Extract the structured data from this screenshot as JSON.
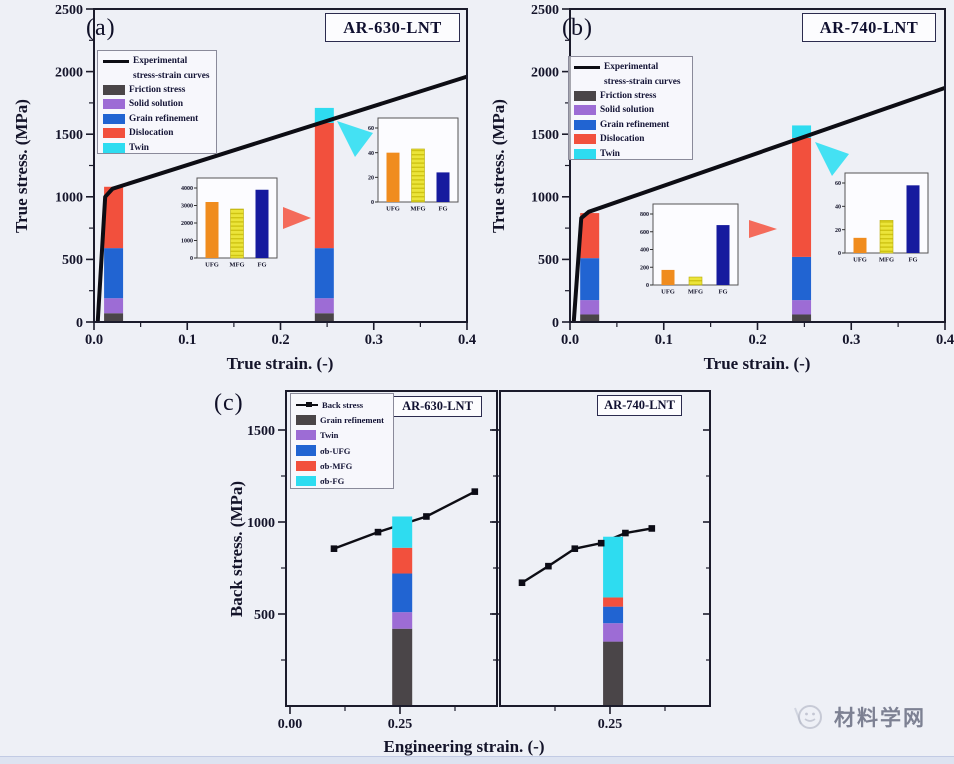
{
  "figure": {
    "panel_letters": {
      "a": "(a)",
      "b": "(b)",
      "c": "(c)"
    },
    "legend_ab": {
      "curve_line1": "Experimental",
      "curve_line2": "stress-strain curves",
      "items": [
        "Friction stress",
        "Solid solution",
        "Grain refinement",
        "Dislocation",
        "Twin"
      ]
    },
    "legend_c": {
      "line_item": "Back stress",
      "items": [
        "Grain refinement",
        "Twin",
        "σb-UFG",
        "σb-MFG",
        "σb-FG"
      ]
    },
    "watermark": "材料学网"
  },
  "colors": {
    "gray": "#4a4548",
    "purple": "#9d6cd5",
    "blue": "#2164d2",
    "red": "#f2503d",
    "cyan": "#2edcf0",
    "orange": "#f08c1e",
    "yellow": "#ebe43a",
    "navy": "#161a9e",
    "line": "#0d0d14",
    "arrow_red": "#f4604d",
    "arrow_cyan": "#35dff2"
  },
  "chart_data": [
    {
      "panel": "a",
      "type": "line+stacked-bar",
      "title": "AR-630-LNT",
      "xlabel": "True strain. (-)",
      "ylabel": "True stress. (MPa)",
      "xlim": [
        0,
        0.4
      ],
      "xticks": [
        0,
        0.1,
        0.2,
        0.3,
        0.4
      ],
      "ylim": [
        0,
        2500
      ],
      "yticks": [
        0,
        500,
        1000,
        1500,
        2000,
        2500
      ],
      "experimental_curve": [
        [
          0.004,
          0
        ],
        [
          0.012,
          1000
        ],
        [
          0.02,
          1065
        ],
        [
          0.4,
          1960
        ]
      ],
      "segment_names": [
        "Friction stress",
        "Solid solution",
        "Grain refinement",
        "Dislocation",
        "Twin"
      ],
      "bars": [
        {
          "x": 0.021,
          "segments": [
            70,
            120,
            400,
            490,
            0
          ]
        },
        {
          "x": 0.247,
          "segments": [
            70,
            120,
            400,
            1000,
            120
          ]
        }
      ],
      "insets": [
        {
          "pos": "center",
          "ylim": [
            0,
            4000
          ],
          "yticks": [
            0,
            1000,
            2000,
            3000,
            4000
          ],
          "categories": [
            "UFG",
            "MFG",
            "FG"
          ],
          "values": [
            3200,
            2800,
            3900
          ]
        },
        {
          "pos": "upper-right",
          "ylim": [
            0,
            60
          ],
          "yticks": [
            0,
            20,
            40,
            60
          ],
          "categories": [
            "UFG",
            "MFG",
            "FG"
          ],
          "values": [
            40,
            43,
            24
          ]
        }
      ],
      "annotations": [
        {
          "shape": "arrow",
          "color": "red",
          "dir": "right"
        },
        {
          "shape": "arrow",
          "color": "cyan",
          "dir": "upper-left"
        }
      ]
    },
    {
      "panel": "b",
      "type": "line+stacked-bar",
      "title": "AR-740-LNT",
      "xlabel": "True strain. (-)",
      "ylabel": "True stress. (MPa)",
      "xlim": [
        0,
        0.4
      ],
      "xticks": [
        0,
        0.1,
        0.2,
        0.3,
        0.4
      ],
      "ylim": [
        0,
        2500
      ],
      "yticks": [
        0,
        500,
        1000,
        1500,
        2000,
        2500
      ],
      "experimental_curve": [
        [
          0.004,
          0
        ],
        [
          0.012,
          830
        ],
        [
          0.02,
          880
        ],
        [
          0.4,
          1870
        ]
      ],
      "segment_names": [
        "Friction stress",
        "Solid solution",
        "Grain refinement",
        "Dislocation",
        "Twin"
      ],
      "bars": [
        {
          "x": 0.021,
          "segments": [
            60,
            115,
            335,
            360,
            0
          ]
        },
        {
          "x": 0.247,
          "segments": [
            60,
            115,
            345,
            950,
            100
          ]
        }
      ],
      "insets": [
        {
          "pos": "center",
          "ylim": [
            0,
            800
          ],
          "yticks": [
            0,
            200,
            400,
            600,
            800
          ],
          "categories": [
            "UFG",
            "MFG",
            "FG"
          ],
          "values": [
            170,
            90,
            675
          ]
        },
        {
          "pos": "upper-right",
          "ylim": [
            0,
            60
          ],
          "yticks": [
            0,
            20,
            40,
            60
          ],
          "categories": [
            "UFG",
            "MFG",
            "FG"
          ],
          "values": [
            13,
            28,
            58
          ]
        }
      ],
      "annotations": [
        {
          "shape": "arrow",
          "color": "red",
          "dir": "right"
        },
        {
          "shape": "arrow",
          "color": "cyan",
          "dir": "upper-left"
        }
      ]
    },
    {
      "panel": "c",
      "type": "line+stacked-bar",
      "xlabel": "Engineering strain. (-)",
      "ylabel": "Back stress. (MPa)",
      "ylim": [
        0,
        1700
      ],
      "yticks": [
        500,
        1000,
        1500
      ],
      "segment_names": [
        "Grain refinement",
        "Twin",
        "σb-UFG",
        "σb-MFG",
        "σb-FG"
      ],
      "subpanels": [
        {
          "title": "AR-630-LNT",
          "xticks": [
            0,
            0.25
          ],
          "xtick_labels": [
            "0.00",
            "0.25"
          ],
          "back_stress": [
            [
              0.1,
              855
            ],
            [
              0.2,
              945
            ],
            [
              0.31,
              1030
            ],
            [
              0.42,
              1165
            ]
          ],
          "bar": {
            "x": 0.255,
            "segments": [
              420,
              90,
              210,
              140,
              170
            ]
          }
        },
        {
          "title": "AR-740-LNT",
          "xticks": [
            0.25
          ],
          "xtick_labels": [
            "0.25"
          ],
          "back_stress": [
            [
              0.05,
              670
            ],
            [
              0.11,
              760
            ],
            [
              0.17,
              855
            ],
            [
              0.23,
              885
            ],
            [
              0.285,
              940
            ],
            [
              0.345,
              965
            ]
          ],
          "bar": {
            "x": 0.257,
            "segments": [
              350,
              100,
              90,
              50,
              330
            ]
          }
        }
      ]
    }
  ]
}
